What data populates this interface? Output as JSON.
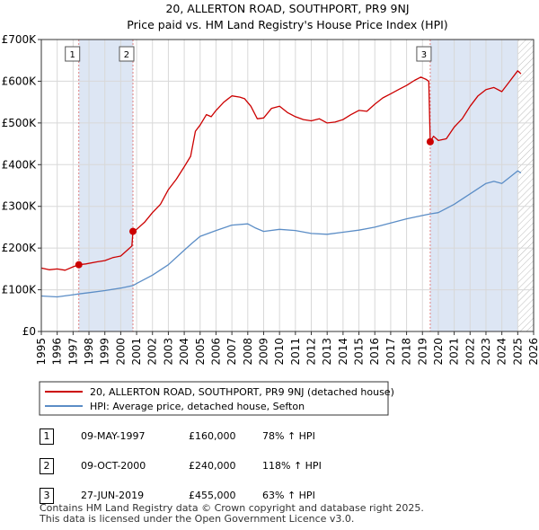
{
  "chart_data": {
    "type": "line",
    "title": "20, ALLERTON ROAD, SOUTHPORT, PR9 9NJ",
    "subtitle": "Price paid vs. HM Land Registry's House Price Index (HPI)",
    "xlim": [
      1995,
      2026
    ],
    "ylim": [
      0,
      700000
    ],
    "x_ticks": [
      1995,
      1996,
      1997,
      1998,
      1999,
      2000,
      2001,
      2002,
      2003,
      2004,
      2005,
      2006,
      2007,
      2008,
      2009,
      2010,
      2011,
      2012,
      2013,
      2014,
      2015,
      2016,
      2017,
      2018,
      2019,
      2020,
      2021,
      2022,
      2023,
      2024,
      2025,
      2026
    ],
    "y_ticks": [
      {
        "value": 0,
        "label": "£0"
      },
      {
        "value": 100000,
        "label": "£100K"
      },
      {
        "value": 200000,
        "label": "£200K"
      },
      {
        "value": 300000,
        "label": "£300K"
      },
      {
        "value": 400000,
        "label": "£400K"
      },
      {
        "value": 500000,
        "label": "£500K"
      },
      {
        "value": 600000,
        "label": "£600K"
      },
      {
        "value": 700000,
        "label": "£700K"
      }
    ],
    "grid": true,
    "colors": {
      "price": "#cc0000",
      "hpi": "#5b8dc6",
      "shade": "#dde6f4",
      "vline": "#e08080",
      "hatch": "#bbbbbb"
    },
    "shaded_ranges": [
      [
        1997.36,
        2000.77
      ],
      [
        2019.49,
        2025.0
      ]
    ],
    "forecast_start": 2025.0,
    "sales": [
      {
        "num": "1",
        "x": 1997.36,
        "value": 160000
      },
      {
        "num": "2",
        "x": 2000.77,
        "value": 240000
      },
      {
        "num": "3",
        "x": 2019.49,
        "value": 455000
      }
    ],
    "series": [
      {
        "name": "20, ALLERTON ROAD, SOUTHPORT, PR9 9NJ (detached house)",
        "points": [
          [
            1995.0,
            152000
          ],
          [
            1995.5,
            148000
          ],
          [
            1996.0,
            150000
          ],
          [
            1996.5,
            147000
          ],
          [
            1997.0,
            155000
          ],
          [
            1997.36,
            160000
          ],
          [
            1997.8,
            162000
          ],
          [
            1998.5,
            167000
          ],
          [
            1999.0,
            170000
          ],
          [
            1999.5,
            177000
          ],
          [
            2000.0,
            181000
          ],
          [
            2000.5,
            198000
          ],
          [
            2000.7,
            205000
          ],
          [
            2000.77,
            240000
          ],
          [
            2001.0,
            245000
          ],
          [
            2001.5,
            262000
          ],
          [
            2002.0,
            285000
          ],
          [
            2002.5,
            305000
          ],
          [
            2003.0,
            340000
          ],
          [
            2003.5,
            365000
          ],
          [
            2004.0,
            395000
          ],
          [
            2004.4,
            420000
          ],
          [
            2004.7,
            480000
          ],
          [
            2005.0,
            495000
          ],
          [
            2005.4,
            520000
          ],
          [
            2005.7,
            515000
          ],
          [
            2006.0,
            530000
          ],
          [
            2006.5,
            550000
          ],
          [
            2007.0,
            565000
          ],
          [
            2007.5,
            562000
          ],
          [
            2007.8,
            558000
          ],
          [
            2008.2,
            540000
          ],
          [
            2008.6,
            510000
          ],
          [
            2009.0,
            512000
          ],
          [
            2009.5,
            535000
          ],
          [
            2010.0,
            540000
          ],
          [
            2010.5,
            525000
          ],
          [
            2011.0,
            515000
          ],
          [
            2011.5,
            508000
          ],
          [
            2012.0,
            505000
          ],
          [
            2012.5,
            510000
          ],
          [
            2013.0,
            500000
          ],
          [
            2013.5,
            502000
          ],
          [
            2014.0,
            508000
          ],
          [
            2014.5,
            520000
          ],
          [
            2015.0,
            530000
          ],
          [
            2015.5,
            528000
          ],
          [
            2016.0,
            545000
          ],
          [
            2016.5,
            560000
          ],
          [
            2017.0,
            570000
          ],
          [
            2017.5,
            580000
          ],
          [
            2018.0,
            590000
          ],
          [
            2018.5,
            602000
          ],
          [
            2018.9,
            610000
          ],
          [
            2019.2,
            605000
          ],
          [
            2019.4,
            600000
          ],
          [
            2019.49,
            455000
          ],
          [
            2019.7,
            468000
          ],
          [
            2020.0,
            458000
          ],
          [
            2020.5,
            462000
          ],
          [
            2021.0,
            490000
          ],
          [
            2021.5,
            510000
          ],
          [
            2022.0,
            540000
          ],
          [
            2022.5,
            565000
          ],
          [
            2023.0,
            580000
          ],
          [
            2023.5,
            585000
          ],
          [
            2024.0,
            575000
          ],
          [
            2024.5,
            600000
          ],
          [
            2025.0,
            625000
          ],
          [
            2025.2,
            618000
          ]
        ]
      },
      {
        "name": "HPI: Average price, detached house, Sefton",
        "points": [
          [
            1995.0,
            85000
          ],
          [
            1996.0,
            83000
          ],
          [
            1997.0,
            88000
          ],
          [
            1997.36,
            90000
          ],
          [
            1998.0,
            93000
          ],
          [
            1999.0,
            98000
          ],
          [
            2000.0,
            104000
          ],
          [
            2000.77,
            110000
          ],
          [
            2001.0,
            115000
          ],
          [
            2002.0,
            135000
          ],
          [
            2003.0,
            160000
          ],
          [
            2004.0,
            195000
          ],
          [
            2004.5,
            212000
          ],
          [
            2005.0,
            228000
          ],
          [
            2006.0,
            242000
          ],
          [
            2007.0,
            255000
          ],
          [
            2008.0,
            258000
          ],
          [
            2008.5,
            248000
          ],
          [
            2009.0,
            240000
          ],
          [
            2010.0,
            245000
          ],
          [
            2011.0,
            242000
          ],
          [
            2012.0,
            235000
          ],
          [
            2013.0,
            233000
          ],
          [
            2014.0,
            238000
          ],
          [
            2015.0,
            243000
          ],
          [
            2016.0,
            250000
          ],
          [
            2017.0,
            260000
          ],
          [
            2018.0,
            270000
          ],
          [
            2019.0,
            278000
          ],
          [
            2019.49,
            282000
          ],
          [
            2020.0,
            285000
          ],
          [
            2021.0,
            305000
          ],
          [
            2022.0,
            330000
          ],
          [
            2023.0,
            355000
          ],
          [
            2023.5,
            360000
          ],
          [
            2024.0,
            355000
          ],
          [
            2024.5,
            370000
          ],
          [
            2025.0,
            385000
          ],
          [
            2025.2,
            380000
          ]
        ]
      }
    ]
  },
  "legend": {
    "items": [
      {
        "label": "20, ALLERTON ROAD, SOUTHPORT, PR9 9NJ (detached house)",
        "color": "#cc0000"
      },
      {
        "label": "HPI: Average price, detached house, Sefton",
        "color": "#5b8dc6"
      }
    ]
  },
  "sales_table": [
    {
      "num": "1",
      "date": "09-MAY-1997",
      "price": "£160,000",
      "hpi": "78% ↑ HPI"
    },
    {
      "num": "2",
      "date": "09-OCT-2000",
      "price": "£240,000",
      "hpi": "118% ↑ HPI"
    },
    {
      "num": "3",
      "date": "27-JUN-2019",
      "price": "£455,000",
      "hpi": "63% ↑ HPI"
    }
  ],
  "footer": {
    "line1": "Contains HM Land Registry data © Crown copyright and database right 2025.",
    "line2": "This data is licensed under the Open Government Licence v3.0."
  }
}
